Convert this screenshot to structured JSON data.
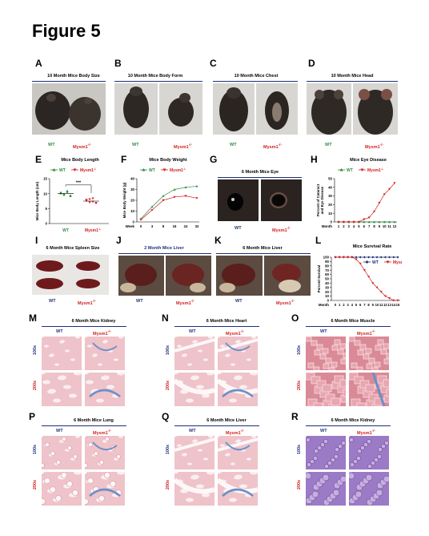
{
  "figure_title": "Figure 5",
  "genotypes": {
    "wt": "WT",
    "mut": "Mysm1",
    "mut_sup": "-/-"
  },
  "colors": {
    "wt_green": "#2b8a3e",
    "mut_red": "#d32020",
    "wt_blue": "#1f2f7a",
    "he_pink": "#e6a3ad",
    "trichrome_blue": "#6b8fc9",
    "pas_purple": "#8a5fb8"
  },
  "panels": {
    "A": {
      "label": "A",
      "title": "10 Month Mice Body Size"
    },
    "B": {
      "label": "B",
      "title": "10 Month Mice Body Form"
    },
    "C": {
      "label": "C",
      "title": "10 Month Mice Chest"
    },
    "D": {
      "label": "D",
      "title": "10 Month Mice  Head"
    },
    "E": {
      "label": "E",
      "title": "Mice Body Length",
      "ylabel": "Mice Body Length (cm)",
      "signif": "***"
    },
    "F": {
      "label": "F",
      "title": "Mice Body Weight",
      "ylabel": "Mice Body Weight (g)",
      "xprefix": "Week"
    },
    "G": {
      "label": "G",
      "title": "6 Month Mice Eye"
    },
    "H": {
      "label": "H",
      "title": "Mice Eye Disease",
      "ylabel": "Percent of Cataract and Eye Disease",
      "xprefix": "Month"
    },
    "I": {
      "label": "I",
      "title": "6 Month Mice Spleen Size"
    },
    "J": {
      "label": "J",
      "title": "2 Month Mice Liver"
    },
    "K": {
      "label": "K",
      "title": "6 Month Mice Liver"
    },
    "L": {
      "label": "L",
      "title": "Mice Survival Rate",
      "ylabel": "Percent Survival",
      "xprefix": "Month"
    },
    "M": {
      "label": "M",
      "title": "6 Month Mice Kidney"
    },
    "N": {
      "label": "N",
      "title": "6 Month Mice Heart"
    },
    "O": {
      "label": "O",
      "title": "6 Month Mice  Muscle"
    },
    "P": {
      "label": "P",
      "title": "6 Month Mice Lung"
    },
    "Q": {
      "label": "Q",
      "title": "6 Month Mice Liver"
    },
    "R": {
      "label": "R",
      "title": "6 Month Mice  Kidney"
    }
  },
  "magnifications": {
    "low": "100x",
    "high": "200x"
  },
  "chart_data": [
    {
      "panel": "E",
      "type": "scatter",
      "title": "Mice Body Length",
      "ylabel": "Mice Body Length (cm)",
      "ylim": [
        0,
        15
      ],
      "yticks": [
        0,
        5,
        10,
        15
      ],
      "categories": [
        "WT",
        "Mysm1-/-"
      ],
      "series": [
        {
          "name": "WT",
          "values": [
            10.4,
            9.6,
            10.9,
            9.2,
            10.1,
            9.9,
            10.6,
            9.4
          ],
          "mean": 10.0
        },
        {
          "name": "Mysm1-/-",
          "values": [
            7.9,
            7.1,
            8.4,
            6.8,
            7.6,
            8.1,
            7.3,
            6.9
          ],
          "mean": 7.5
        }
      ],
      "annotation": "***"
    },
    {
      "panel": "F",
      "type": "line",
      "title": "Mice Body Weight",
      "ylabel": "Mice Body Weight (g)",
      "ylim": [
        0,
        40
      ],
      "yticks": [
        0,
        10,
        20,
        30,
        40
      ],
      "x": [
        "0",
        "3",
        "8",
        "16",
        "24",
        "32"
      ],
      "series": [
        {
          "name": "WT",
          "values": [
            3,
            14,
            24,
            30,
            32,
            33
          ]
        },
        {
          "name": "Mysm1-/-",
          "values": [
            2,
            11,
            20,
            23,
            24,
            22
          ]
        }
      ]
    },
    {
      "panel": "H",
      "type": "line",
      "title": "Mice Eye Disease",
      "ylabel": "Percent of Cataract and Eye Disease",
      "ylim": [
        0,
        50
      ],
      "yticks": [
        0,
        10,
        20,
        30,
        40,
        50
      ],
      "x": [
        "1",
        "2",
        "3",
        "4",
        "5",
        "6",
        "7",
        "8",
        "9",
        "10",
        "11",
        "12"
      ],
      "series": [
        {
          "name": "WT",
          "values": [
            0,
            0,
            0,
            0,
            0,
            0,
            0,
            0,
            0,
            0,
            0,
            0
          ]
        },
        {
          "name": "Mysm1-/-",
          "values": [
            0,
            0,
            0,
            0,
            0,
            3,
            5,
            12,
            22,
            32,
            38,
            45
          ]
        }
      ]
    },
    {
      "panel": "L",
      "type": "line",
      "title": "Mice Survival Rate",
      "ylabel": "Percent Survival",
      "ylim": [
        0,
        100
      ],
      "yticks": [
        0,
        10,
        20,
        30,
        40,
        50,
        60,
        70,
        80,
        90,
        100
      ],
      "x": [
        "0",
        "1",
        "2",
        "3",
        "4",
        "5",
        "6",
        "7",
        "8",
        "9",
        "10",
        "11",
        "12",
        "13",
        "14",
        "15"
      ],
      "series": [
        {
          "name": "WT",
          "values": [
            100,
            100,
            100,
            100,
            100,
            100,
            100,
            100,
            100,
            100,
            100,
            100,
            100,
            100,
            100,
            100
          ]
        },
        {
          "name": "Mysm1-/-",
          "values": [
            100,
            100,
            100,
            100,
            100,
            95,
            85,
            70,
            55,
            40,
            30,
            20,
            10,
            5,
            0,
            0
          ]
        }
      ]
    }
  ]
}
